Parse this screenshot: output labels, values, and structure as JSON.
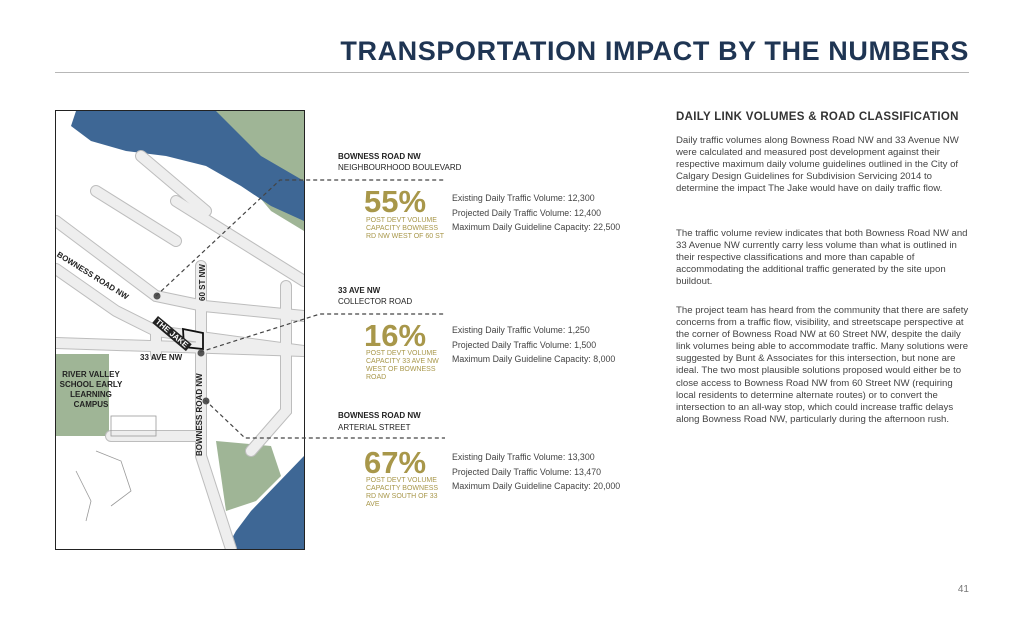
{
  "page": {
    "title": "TRANSPORTATION IMPACT BY THE NUMBERS",
    "page_number": "41"
  },
  "map": {
    "labels": {
      "bowness_road_nw_upper": "BOWNESS ROAD NW",
      "st_60": "60 ST NW",
      "the_jake": "THE JAKE",
      "ave_33": "33 AVE NW",
      "bowness_road_nw_lower": "BOWNESS ROAD NW",
      "school": "RIVER VALLEY SCHOOL EARLY LEARNING CAMPUS"
    },
    "colors": {
      "water": "#3e6795",
      "green": "#9fb596",
      "road": "#e8e8e8"
    }
  },
  "roads": [
    {
      "name": "BOWNESS ROAD NW",
      "classification": "NEIGHBOURHOOD BOULEVARD",
      "percent": "55%",
      "caption": "POST DEVT VOLUME CAPACITY BOWNESS RD NW WEST OF 60 ST",
      "existing": "Existing Daily Traffic Volume: 12,300",
      "projected": "Projected Daily Traffic Volume: 12,400",
      "maximum": "Maximum Daily Guideline Capacity: 22,500"
    },
    {
      "name": "33 AVE NW",
      "classification": "COLLECTOR ROAD",
      "percent": "16%",
      "caption": "POST DEVT VOLUME CAPACITY 33 AVE NW WEST OF BOWNESS ROAD",
      "existing": "Existing Daily Traffic Volume: 1,250",
      "projected": "Projected Daily Traffic Volume: 1,500",
      "maximum": "Maximum Daily Guideline Capacity: 8,000"
    },
    {
      "name": "BOWNESS ROAD NW",
      "classification": "ARTERIAL STREET",
      "percent": "67%",
      "caption": "POST DEVT VOLUME CAPACITY BOWNESS RD NW SOUTH OF 33 AVE",
      "existing": "Existing Daily Traffic Volume: 13,300",
      "projected": "Projected Daily Traffic Volume: 13,470",
      "maximum": "Maximum Daily Guideline Capacity: 20,000"
    }
  ],
  "section": {
    "title": "DAILY LINK VOLUMES & ROAD CLASSIFICATION",
    "paragraphs": [
      "Daily traffic volumes along Bowness Road NW and 33 Avenue NW were calculated and measured post development against their respective maximum daily volume guidelines outlined in the City of Calgary Design Guidelines for Subdivision Servicing 2014 to determine the impact The Jake would have on daily traffic flow.",
      "The traffic volume review indicates that both Bowness Road NW and 33 Avenue NW currently carry less volume than what is outlined in their respective classifications and more than capable of accommodating the additional traffic generated by the site upon buildout.",
      "The project team has heard from the community that there are safety concerns from a traffic flow, visibility, and streetscape perspective at the corner of Bowness Road NW at 60 Street NW, despite the daily link volumes being able to accommodate traffic. Many solutions were suggested by Bunt & Associates for this intersection, but none are ideal. The two most plausible solutions proposed would either be to close access to Bowness Road NW from 60 Street NW (requiring local residents to determine alternate routes) or to convert the intersection to an all-way stop, which could increase traffic delays along Bowness Road NW, particularly during the afternoon rush."
    ]
  }
}
